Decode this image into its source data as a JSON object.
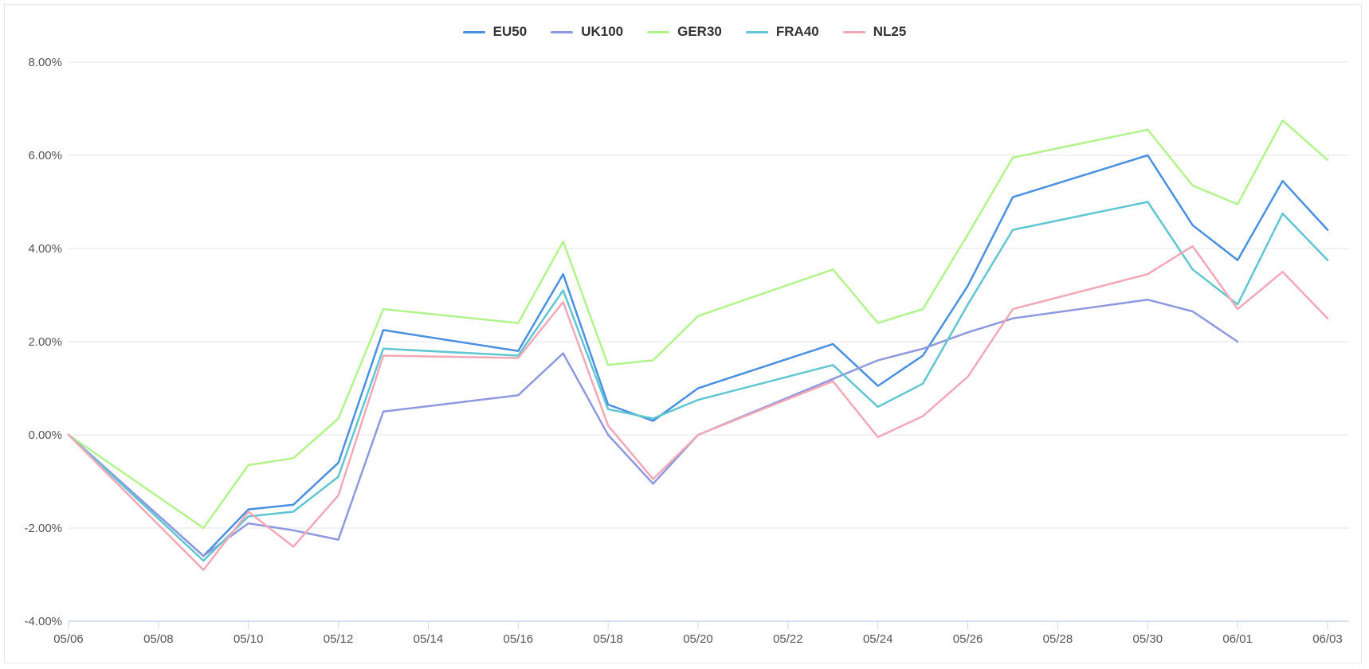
{
  "chart_data": {
    "type": "line",
    "title": "",
    "xlabel": "",
    "ylabel": "",
    "ylim": [
      -4,
      8
    ],
    "xlim": [
      "05/06",
      "06/03"
    ],
    "grid": true,
    "legend_position": "top-center",
    "y_ticks": [
      -4,
      -2,
      0,
      2,
      4,
      6,
      8
    ],
    "y_tick_labels": [
      "-4.00%",
      "-2.00%",
      "0.00%",
      "2.00%",
      "4.00%",
      "6.00%",
      "8.00%"
    ],
    "x_ticks": [
      "05/06",
      "05/08",
      "05/10",
      "05/12",
      "05/14",
      "05/16",
      "05/18",
      "05/20",
      "05/22",
      "05/24",
      "05/26",
      "05/28",
      "05/30",
      "06/01",
      "06/03"
    ],
    "x": [
      "05/06",
      "05/09",
      "05/10",
      "05/11",
      "05/12",
      "05/13",
      "05/16",
      "05/17",
      "05/18",
      "05/19",
      "05/20",
      "05/23",
      "05/24",
      "05/25",
      "05/26",
      "05/27",
      "05/30",
      "05/31",
      "06/01",
      "06/02",
      "06/03"
    ],
    "series": [
      {
        "name": "EU50",
        "color": "#4a90e2",
        "values": [
          0,
          -2.6,
          -1.6,
          -1.5,
          -0.6,
          2.25,
          1.8,
          3.45,
          0.65,
          0.3,
          1.0,
          1.95,
          1.05,
          1.7,
          3.2,
          5.1,
          6.0,
          4.5,
          3.75,
          5.45,
          4.4
        ]
      },
      {
        "name": "UK100",
        "color": "#8f99e0",
        "values": [
          0,
          -2.6,
          -1.9,
          -2.05,
          -2.25,
          0.5,
          0.85,
          1.75,
          0.0,
          -1.05,
          0.0,
          1.2,
          1.6,
          1.85,
          2.2,
          2.5,
          2.9,
          2.65,
          2.0,
          null,
          null
        ]
      },
      {
        "name": "GER30",
        "color": "#b2f38c",
        "values": [
          0,
          -2.0,
          -0.65,
          -0.5,
          0.35,
          2.7,
          2.4,
          4.15,
          1.5,
          1.6,
          2.55,
          3.55,
          2.4,
          2.7,
          4.3,
          5.95,
          6.55,
          5.35,
          4.95,
          6.75,
          5.9
        ]
      },
      {
        "name": "FRA40",
        "color": "#5fc6d2",
        "values": [
          0,
          -2.7,
          -1.75,
          -1.65,
          -0.9,
          1.85,
          1.7,
          3.1,
          0.55,
          0.35,
          0.75,
          1.5,
          0.6,
          1.1,
          2.8,
          4.4,
          5.0,
          3.55,
          2.8,
          4.75,
          3.75
        ]
      },
      {
        "name": "NL25",
        "color": "#f2a8b6",
        "values": [
          0,
          -2.9,
          -1.65,
          -2.4,
          -1.3,
          1.7,
          1.65,
          2.85,
          0.2,
          -0.95,
          0.0,
          1.15,
          -0.05,
          0.4,
          1.25,
          2.7,
          3.45,
          4.05,
          2.7,
          3.5,
          2.5
        ]
      }
    ]
  }
}
